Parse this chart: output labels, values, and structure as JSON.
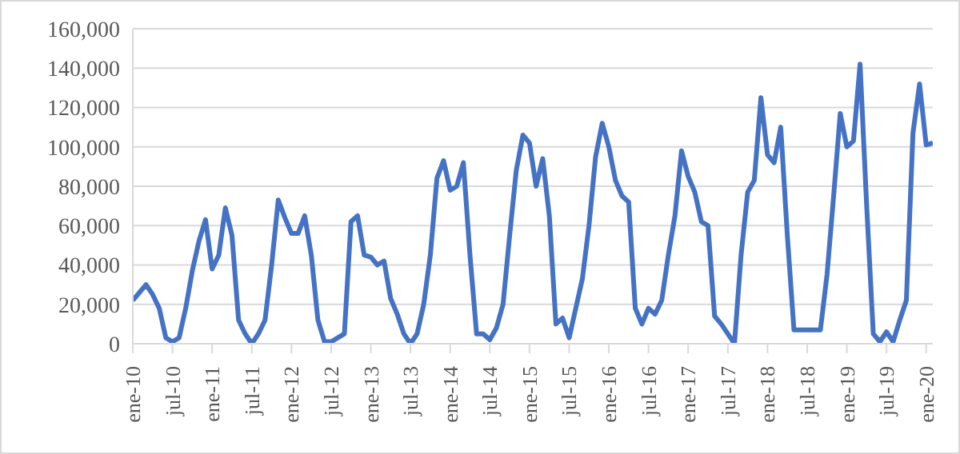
{
  "chart_data": {
    "type": "line",
    "categories": [
      "ene-10",
      null,
      null,
      null,
      null,
      null,
      "jul-10",
      null,
      null,
      null,
      null,
      null,
      "ene-11",
      null,
      null,
      null,
      null,
      null,
      "jul-11",
      null,
      null,
      null,
      null,
      null,
      "ene-12",
      null,
      null,
      null,
      null,
      null,
      "jul-12",
      null,
      null,
      null,
      null,
      null,
      "ene-13",
      null,
      null,
      null,
      null,
      null,
      "jul-13",
      null,
      null,
      null,
      null,
      null,
      "ene-14",
      null,
      null,
      null,
      null,
      null,
      "jul-14",
      null,
      null,
      null,
      null,
      null,
      "ene-15",
      null,
      null,
      null,
      null,
      null,
      "jul-15",
      null,
      null,
      null,
      null,
      null,
      "ene-16",
      null,
      null,
      null,
      null,
      null,
      "jul-16",
      null,
      null,
      null,
      null,
      null,
      "ene-17",
      null,
      null,
      null,
      null,
      null,
      "jul-17",
      null,
      null,
      null,
      null,
      null,
      "ene-18",
      null,
      null,
      null,
      null,
      null,
      "jul-18",
      null,
      null,
      null,
      null,
      null,
      "ene-19",
      null,
      null,
      null,
      null,
      null,
      "jul-19",
      null,
      null,
      null,
      null,
      null,
      "ene-20",
      null
    ],
    "series": [
      {
        "color": "#4472c4",
        "values": [
          22000,
          26000,
          30000,
          25000,
          18000,
          3000,
          1000,
          3000,
          18000,
          37000,
          52000,
          63000,
          38000,
          45000,
          69000,
          55000,
          12000,
          5000,
          0,
          5000,
          12000,
          40000,
          73000,
          64000,
          56000,
          56000,
          65000,
          45000,
          12000,
          1000,
          1000,
          3000,
          5000,
          62000,
          65000,
          45000,
          44000,
          40000,
          42000,
          23000,
          15000,
          5000,
          0,
          5000,
          20000,
          45000,
          84000,
          93000,
          78000,
          80000,
          92000,
          45000,
          5000,
          5000,
          2000,
          8000,
          20000,
          55000,
          88000,
          106000,
          102000,
          80000,
          94000,
          65000,
          10000,
          13000,
          3000,
          18000,
          33000,
          60000,
          95000,
          112000,
          100000,
          83000,
          75000,
          72000,
          18000,
          10000,
          18000,
          15000,
          22000,
          45000,
          65000,
          98000,
          85000,
          77000,
          62000,
          60000,
          14000,
          10000,
          5000,
          0,
          45000,
          77000,
          83000,
          125000,
          96000,
          92000,
          110000,
          55000,
          7000,
          7000,
          7000,
          7000,
          7000,
          35000,
          75000,
          117000,
          100000,
          103000,
          142000,
          70000,
          5000,
          1000,
          6000,
          1000,
          12000,
          22000,
          107000,
          132000,
          101000,
          102000
        ]
      }
    ],
    "ylim": [
      0,
      160000
    ],
    "yticks": [
      0,
      {
        "value": 20000,
        "label": "20,000"
      },
      {
        "value": 40000,
        "label": "40,000"
      },
      {
        "value": 60000,
        "label": "60,000"
      },
      {
        "value": 80000,
        "label": "80,000"
      },
      {
        "value": 100000,
        "label": "100,000"
      },
      {
        "value": 120000,
        "label": "120,000"
      },
      {
        "value": 140000,
        "label": "140,000"
      },
      {
        "value": 160000,
        "label": "160,000"
      }
    ],
    "grid": "y",
    "legend": false,
    "marker": "none",
    "line_style": "solid"
  }
}
